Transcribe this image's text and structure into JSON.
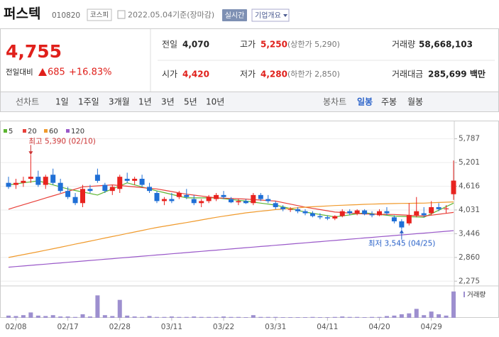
{
  "header": {
    "title": "퍼스텍",
    "code": "010820",
    "market": "코스피",
    "date": "2022.05.04",
    "basis": "기준(장마감)",
    "realtime": "실시간",
    "company": "기업개요"
  },
  "quote": {
    "price": "4,755",
    "change_label": "전일대비",
    "change": "685",
    "change_rate": "+16.83%",
    "items": [
      {
        "label": "전일",
        "value": "4,070"
      },
      {
        "label": "고가",
        "value": "5,250",
        "note": "(상한가 5,290)"
      },
      {
        "label": "거래량",
        "value": "58,668,103"
      },
      {
        "label": "시가",
        "value": "4,420"
      },
      {
        "label": "저가",
        "value": "4,280",
        "note": "(하한가 2,850)"
      },
      {
        "label": "거래대금",
        "value": "285,699 백만"
      }
    ]
  },
  "tabs": {
    "line": [
      "선차트",
      "1일",
      "1주일",
      "3개월",
      "1년",
      "3년",
      "5년",
      "10년"
    ],
    "candle": [
      "봉차트",
      "일봉",
      "주봉",
      "월봉"
    ],
    "active": "일봉"
  },
  "chart_data": {
    "type": "candlestick",
    "categories": [
      null,
      "02/08",
      null,
      null,
      null,
      null,
      null,
      null,
      "02/17",
      null,
      null,
      null,
      null,
      null,
      null,
      "02/28",
      null,
      null,
      null,
      null,
      null,
      null,
      "03/11",
      null,
      null,
      null,
      null,
      null,
      null,
      "03/22",
      null,
      null,
      null,
      null,
      null,
      null,
      "03/31",
      null,
      null,
      null,
      null,
      null,
      null,
      "04/11",
      null,
      null,
      null,
      null,
      null,
      null,
      "04/20",
      null,
      null,
      null,
      null,
      null,
      null,
      "04/29",
      null,
      null,
      null
    ],
    "candles": [
      [
        4700,
        4850,
        4550,
        4600
      ],
      [
        4650,
        4800,
        4550,
        4700
      ],
      [
        4700,
        4850,
        4600,
        4750
      ],
      [
        4800,
        5390,
        4700,
        4850
      ],
      [
        4850,
        5000,
        4600,
        4650
      ],
      [
        4650,
        4900,
        4550,
        4850
      ],
      [
        4900,
        5050,
        4650,
        4700
      ],
      [
        4700,
        4800,
        4450,
        4500
      ],
      [
        4500,
        4600,
        4300,
        4350
      ],
      [
        4350,
        4450,
        4150,
        4200
      ],
      [
        4200,
        4650,
        4100,
        4550
      ],
      [
        4550,
        4650,
        4450,
        4500
      ],
      [
        4900,
        5050,
        4700,
        4750
      ],
      [
        4650,
        4700,
        4450,
        4500
      ],
      [
        4500,
        4650,
        4400,
        4600
      ],
      [
        4550,
        4900,
        4450,
        4850
      ],
      [
        4800,
        4950,
        4700,
        4750
      ],
      [
        4750,
        4850,
        4650,
        4800
      ],
      [
        4800,
        4900,
        4600,
        4650
      ],
      [
        4600,
        4700,
        4450,
        4500
      ],
      [
        4450,
        4500,
        4200,
        4250
      ],
      [
        4250,
        4350,
        4150,
        4300
      ],
      [
        4300,
        4450,
        4200,
        4250
      ],
      [
        4350,
        4500,
        4300,
        4450
      ],
      [
        4400,
        4550,
        4300,
        4350
      ],
      [
        4300,
        4400,
        4150,
        4200
      ],
      [
        4200,
        4300,
        4100,
        4250
      ],
      [
        4250,
        4400,
        4200,
        4350
      ],
      [
        4300,
        4450,
        4250,
        4400
      ],
      [
        4400,
        4500,
        4300,
        4350
      ],
      [
        4300,
        4350,
        4200,
        4220
      ],
      [
        4220,
        4300,
        4150,
        4250
      ],
      [
        4250,
        4300,
        4180,
        4200
      ],
      [
        4200,
        4450,
        4150,
        4400
      ],
      [
        4400,
        4450,
        4250,
        4300
      ],
      [
        4300,
        4400,
        4200,
        4250
      ],
      [
        4200,
        4250,
        4050,
        4100
      ],
      [
        4100,
        4150,
        4000,
        4050
      ],
      [
        4050,
        4100,
        3980,
        4050
      ],
      [
        4050,
        4100,
        3950,
        4000
      ],
      [
        4000,
        4050,
        3900,
        3950
      ],
      [
        3950,
        4000,
        3850,
        3880
      ],
      [
        3880,
        3950,
        3800,
        3850
      ],
      [
        3850,
        3900,
        3780,
        3820
      ],
      [
        3820,
        3900,
        3780,
        3880
      ],
      [
        3880,
        4050,
        3850,
        4000
      ],
      [
        4000,
        4050,
        3900,
        3950
      ],
      [
        3950,
        4050,
        3900,
        4020
      ],
      [
        4020,
        4050,
        3900,
        3930
      ],
      [
        3930,
        4000,
        3850,
        3900
      ],
      [
        3900,
        4050,
        3880,
        4000
      ],
      [
        4000,
        4100,
        3900,
        3950
      ],
      [
        3850,
        3900,
        3700,
        3750
      ],
      [
        3750,
        3800,
        3545,
        3600
      ],
      [
        3700,
        4200,
        3650,
        3900
      ],
      [
        3900,
        4350,
        3850,
        4000
      ],
      [
        3950,
        4100,
        3850,
        3900
      ],
      [
        3950,
        4250,
        3900,
        4100
      ],
      [
        4100,
        4200,
        4000,
        4050
      ],
      [
        4050,
        4150,
        3950,
        4070
      ],
      [
        4420,
        5250,
        4280,
        4755
      ]
    ],
    "up_color": "#e8231f",
    "down_color": "#1f6fd6",
    "series": [
      {
        "name": "5",
        "color": "#5cb531",
        "values": [
          4650,
          4675,
          4700,
          4725,
          4750,
          4700,
          4650,
          4600,
          4550,
          4512,
          4475,
          4438,
          4400,
          4475,
          4550,
          4625,
          4700,
          4650,
          4600,
          4550,
          4500,
          4458,
          4415,
          4372,
          4330,
          4330,
          4330,
          4330,
          4330,
          4310,
          4290,
          4270,
          4250,
          4225,
          4200,
          4175,
          4150,
          4108,
          4065,
          4022,
          3980,
          3950,
          3920,
          3890,
          3860,
          3885,
          3910,
          3935,
          3960,
          3940,
          3920,
          3900,
          3880,
          3872,
          3865,
          3858,
          3850,
          3938,
          4025,
          4112,
          4200
        ]
      },
      {
        "name": "20",
        "color": "#e8403a",
        "values": [
          4050,
          4105,
          4160,
          4215,
          4270,
          4325,
          4380,
          4435,
          4490,
          4545,
          4600,
          4612,
          4625,
          4638,
          4650,
          4633,
          4617,
          4600,
          4583,
          4567,
          4550,
          4518,
          4485,
          4452,
          4420,
          4398,
          4375,
          4352,
          4330,
          4322,
          4315,
          4308,
          4300,
          4288,
          4275,
          4262,
          4250,
          4212,
          4175,
          4138,
          4100,
          4070,
          4040,
          4010,
          3980,
          3968,
          3955,
          3942,
          3930,
          3928,
          3925,
          3922,
          3920,
          3910,
          3900,
          3890,
          3880,
          3902,
          3925,
          3948,
          3970
        ]
      },
      {
        "name": "60",
        "color": "#f09a2c",
        "values": [
          2860,
          2895,
          2930,
          2965,
          3000,
          3038,
          3075,
          3112,
          3150,
          3188,
          3225,
          3262,
          3300,
          3338,
          3375,
          3412,
          3450,
          3488,
          3525,
          3562,
          3600,
          3630,
          3660,
          3690,
          3720,
          3752,
          3785,
          3818,
          3850,
          3878,
          3905,
          3932,
          3960,
          3980,
          4000,
          4020,
          4040,
          4055,
          4070,
          4085,
          4100,
          4110,
          4120,
          4130,
          4140,
          4148,
          4155,
          4162,
          4170,
          4175,
          4180,
          4185,
          4190,
          4192,
          4195,
          4198,
          4200,
          4208,
          4215,
          4222,
          4230
        ]
      },
      {
        "name": "120",
        "color": "#9a59c9",
        "values": [
          2620,
          2635,
          2650,
          2665,
          2680,
          2695,
          2710,
          2725,
          2740,
          2755,
          2770,
          2785,
          2800,
          2815,
          2830,
          2845,
          2860,
          2875,
          2890,
          2905,
          2920,
          2935,
          2950,
          2965,
          2980,
          2995,
          3010,
          3025,
          3040,
          3055,
          3070,
          3085,
          3100,
          3115,
          3130,
          3145,
          3160,
          3175,
          3190,
          3205,
          3220,
          3235,
          3250,
          3265,
          3280,
          3295,
          3310,
          3325,
          3340,
          3355,
          3370,
          3385,
          3400,
          3415,
          3430,
          3445,
          3460,
          3475,
          3490,
          3505,
          3520
        ]
      }
    ],
    "volume": {
      "name": "거래량",
      "color": "#9d8fcf",
      "ylim": [
        0,
        60000000
      ],
      "values": [
        5000000,
        4000000,
        6000000,
        12000000,
        5000000,
        4000000,
        6000000,
        3000000,
        3000000,
        2000000,
        8000000,
        3000000,
        50000000,
        6000000,
        4000000,
        40000000,
        5000000,
        3000000,
        2000000,
        4000000,
        2000000,
        2000000,
        3000000,
        2000000,
        2000000,
        3000000,
        2000000,
        2000000,
        2000000,
        3000000,
        2000000,
        2000000,
        1500000,
        6000000,
        2000000,
        2000000,
        2000000,
        1500000,
        1500000,
        1500000,
        1500000,
        2000000,
        1500000,
        1500000,
        2000000,
        3000000,
        2000000,
        2000000,
        1500000,
        2000000,
        2000000,
        4000000,
        5000000,
        8000000,
        10000000,
        20000000,
        6000000,
        14000000,
        8000000,
        5000000,
        58668103
      ]
    },
    "ylim": [
      2210,
      6060
    ],
    "yticks": [
      {
        "value": 5787,
        "label": "5,787"
      },
      {
        "value": 5201,
        "label": "5,201"
      },
      {
        "value": 4616,
        "label": "4,616"
      },
      {
        "value": 4031,
        "label": "4,031"
      },
      {
        "value": 3446,
        "label": "3,446"
      },
      {
        "value": 2860,
        "label": "2,860"
      },
      {
        "value": 2275,
        "label": "2,275"
      }
    ],
    "grid": true,
    "annotations": [
      {
        "text": "최고 5,390 (02/10)",
        "index": 3,
        "value": 5390,
        "position": "above"
      },
      {
        "text": "최저 3,545 (04/25)",
        "index": 53,
        "value": 3545,
        "position": "below"
      }
    ]
  }
}
